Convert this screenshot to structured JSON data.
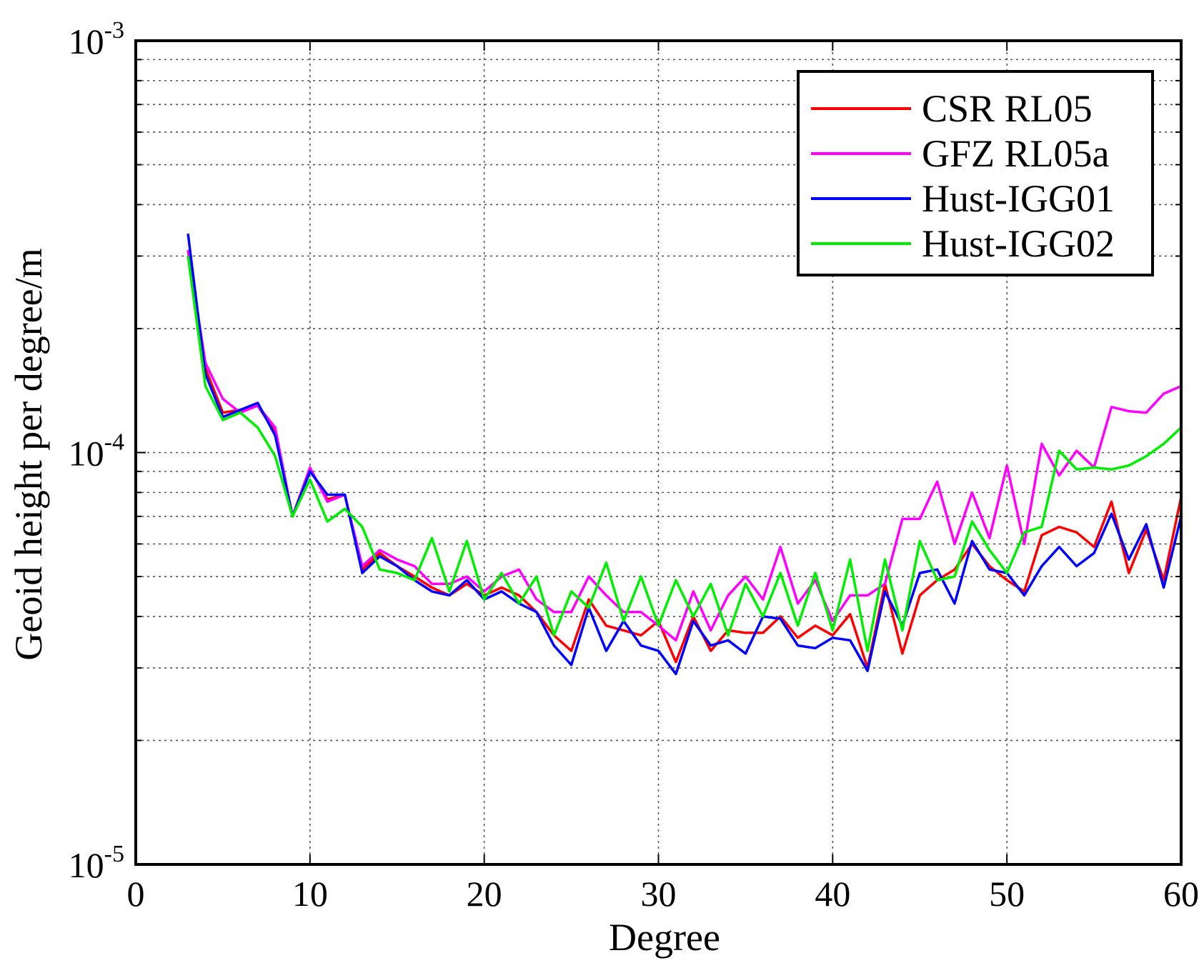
{
  "chart_data": {
    "type": "line",
    "title": "",
    "xlabel": "Degree",
    "ylabel": "Geoid height per degree/m",
    "xlim": [
      0,
      60
    ],
    "ylim": [
      1e-05,
      0.001
    ],
    "yscale": "log",
    "grid": true,
    "legend_position": "top-right",
    "x_ticks": [
      "0",
      "10",
      "20",
      "30",
      "40",
      "50",
      "60"
    ],
    "y_ticks": [
      {
        "base": "10",
        "exp": "-3",
        "value": 0.001
      },
      {
        "base": "10",
        "exp": "-4",
        "value": 0.0001
      },
      {
        "base": "10",
        "exp": "-5",
        "value": 1e-05
      }
    ],
    "x": [
      3,
      4,
      5,
      6,
      7,
      8,
      9,
      10,
      11,
      12,
      13,
      14,
      15,
      16,
      17,
      18,
      19,
      20,
      21,
      22,
      23,
      24,
      25,
      26,
      27,
      28,
      29,
      30,
      31,
      32,
      33,
      34,
      35,
      36,
      37,
      38,
      39,
      40,
      41,
      42,
      43,
      44,
      45,
      46,
      47,
      48,
      49,
      50,
      51,
      52,
      53,
      54,
      55,
      56,
      57,
      58,
      59,
      60
    ],
    "series": [
      {
        "name": "CSR RL05",
        "color": "#ff0000",
        "values": [
          0.00031,
          0.00016,
          0.000125,
          0.000127,
          0.00013,
          0.000112,
          7e-05,
          9.1e-05,
          7.7e-05,
          7.9e-05,
          5.2e-05,
          5.7e-05,
          5.3e-05,
          5e-05,
          4.7e-05,
          4.5e-05,
          4.8e-05,
          4.5e-05,
          4.7e-05,
          4.5e-05,
          4.1e-05,
          3.6e-05,
          3.3e-05,
          4.4e-05,
          3.8e-05,
          3.7e-05,
          3.6e-05,
          3.9e-05,
          3.1e-05,
          4e-05,
          3.3e-05,
          3.7e-05,
          3.65e-05,
          3.65e-05,
          4e-05,
          3.55e-05,
          3.8e-05,
          3.6e-05,
          4.05e-05,
          3e-05,
          4.8e-05,
          3.25e-05,
          4.5e-05,
          4.9e-05,
          5.2e-05,
          6e-05,
          5.3e-05,
          4.9e-05,
          4.6e-05,
          6.3e-05,
          6.6e-05,
          6.4e-05,
          5.9e-05,
          7.6e-05,
          5.1e-05,
          6.5e-05,
          4.9e-05,
          7.8e-05
        ]
      },
      {
        "name": "GFZ RL05a",
        "color": "#ff00ff",
        "values": [
          0.00031,
          0.000165,
          0.000135,
          0.000125,
          0.00013,
          0.000115,
          7e-05,
          9.2e-05,
          7.6e-05,
          7.9e-05,
          5.3e-05,
          5.8e-05,
          5.5e-05,
          5.3e-05,
          4.8e-05,
          4.8e-05,
          5e-05,
          4.6e-05,
          5e-05,
          5.2e-05,
          4.4e-05,
          4.1e-05,
          4.1e-05,
          5e-05,
          4.5e-05,
          4.1e-05,
          4.1e-05,
          3.8e-05,
          3.5e-05,
          4.6e-05,
          3.7e-05,
          4.5e-05,
          5e-05,
          4.4e-05,
          5.9e-05,
          4.3e-05,
          4.9e-05,
          3.9e-05,
          4.5e-05,
          4.5e-05,
          4.8e-05,
          6.9e-05,
          6.9e-05,
          8.5e-05,
          6e-05,
          8e-05,
          6.2e-05,
          9.3e-05,
          6e-05,
          0.000105,
          8.8e-05,
          0.000101,
          9.2e-05,
          0.000129,
          0.000126,
          0.000125,
          0.000139,
          0.000145
        ]
      },
      {
        "name": "Hust-IGG01",
        "color": "#0000ff",
        "values": [
          0.00034,
          0.000155,
          0.000122,
          0.000127,
          0.000132,
          0.00011,
          7e-05,
          9e-05,
          7.9e-05,
          7.9e-05,
          5.1e-05,
          5.6e-05,
          5.3e-05,
          4.9e-05,
          4.6e-05,
          4.5e-05,
          4.9e-05,
          4.4e-05,
          4.6e-05,
          4.3e-05,
          4.1e-05,
          3.4e-05,
          3.05e-05,
          4.2e-05,
          3.3e-05,
          3.9e-05,
          3.4e-05,
          3.3e-05,
          2.9e-05,
          3.9e-05,
          3.4e-05,
          3.5e-05,
          3.25e-05,
          4e-05,
          3.95e-05,
          3.4e-05,
          3.35e-05,
          3.55e-05,
          3.5e-05,
          2.95e-05,
          4.6e-05,
          3.8e-05,
          5.1e-05,
          5.2e-05,
          4.3e-05,
          6.1e-05,
          5.2e-05,
          5.1e-05,
          4.5e-05,
          5.3e-05,
          5.9e-05,
          5.3e-05,
          5.7e-05,
          7.1e-05,
          5.5e-05,
          6.7e-05,
          4.7e-05,
          7e-05
        ]
      },
      {
        "name": "Hust-IGG02",
        "color": "#00ee00",
        "values": [
          0.0003,
          0.000145,
          0.00012,
          0.000125,
          0.000115,
          9.8e-05,
          7e-05,
          8.6e-05,
          6.8e-05,
          7.3e-05,
          6.6e-05,
          5.2e-05,
          5.1e-05,
          4.9e-05,
          6.2e-05,
          4.6e-05,
          6.1e-05,
          4.4e-05,
          5.1e-05,
          4.3e-05,
          5e-05,
          3.6e-05,
          4.6e-05,
          4.2e-05,
          5.4e-05,
          3.9e-05,
          5e-05,
          3.8e-05,
          4.9e-05,
          4e-05,
          4.8e-05,
          3.6e-05,
          4.8e-05,
          4e-05,
          5.1e-05,
          3.8e-05,
          5.1e-05,
          3.7e-05,
          5.5e-05,
          3.3e-05,
          5.5e-05,
          3.7e-05,
          6.1e-05,
          4.9e-05,
          5e-05,
          6.8e-05,
          5.8e-05,
          5.1e-05,
          6.4e-05,
          6.6e-05,
          0.000101,
          9.1e-05,
          9.2e-05,
          9.1e-05,
          9.3e-05,
          9.8e-05,
          0.000105,
          0.000115
        ]
      }
    ]
  }
}
